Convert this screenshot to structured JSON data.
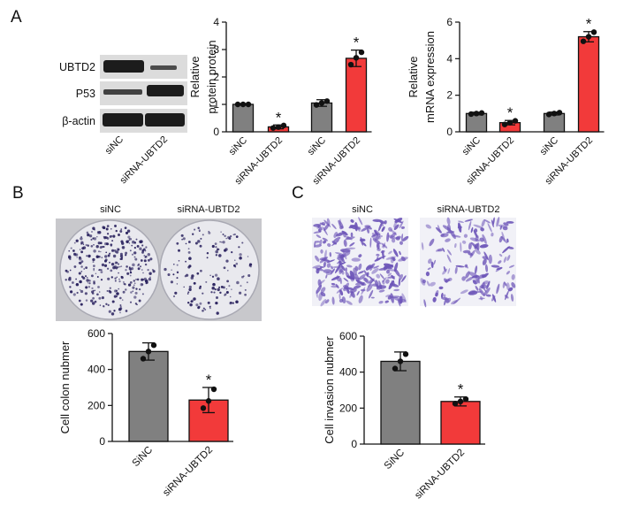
{
  "panels": {
    "a": "A",
    "b": "B",
    "c": "C"
  },
  "colors": {
    "control": "#808080",
    "treated": "#f23a3a",
    "outline": "#111111",
    "point": "#111111",
    "blot_bg": "#dcdcdc",
    "band": "#1c1c1c",
    "plate_bg": "#c8c8cc",
    "dish": "#e9e9ee",
    "colony": "#2c2460",
    "membrane": "#f1f1f7",
    "cell_stain": "#6d55b8"
  },
  "blot": {
    "labels": [
      "UBTD2",
      "P53",
      "β-actin"
    ],
    "lanes": [
      "siNC",
      "siRNA-UBTD2"
    ]
  },
  "colony_photos": {
    "labels": [
      "siNC",
      "siRNA-UBTD2"
    ]
  },
  "invasion_photos": {
    "labels": [
      "siNC",
      "siRNA-UBTD2"
    ]
  },
  "chart_data": [
    {
      "type": "bar",
      "categories": [
        "siNC",
        "siRNA-UBTD2",
        "siNC",
        "siRNA-UBTD2"
      ],
      "values": [
        1.0,
        0.18,
        1.05,
        2.68
      ],
      "errors": [
        0.03,
        0.07,
        0.12,
        0.3
      ],
      "points": [
        [
          1.0,
          1.0,
          1.0
        ],
        [
          0.14,
          0.17,
          0.23
        ],
        [
          0.98,
          1.05,
          1.12
        ],
        [
          2.45,
          2.7,
          2.9
        ]
      ],
      "significant": [
        false,
        true,
        false,
        true
      ],
      "significance_mark": "*",
      "ylabel": [
        "Relative",
        "protein protein"
      ],
      "ylim": [
        0,
        4
      ],
      "yticks": [
        0,
        1,
        2,
        3,
        4
      ]
    },
    {
      "type": "bar",
      "categories": [
        "siNC",
        "siRNA-UBTD2",
        "siNC",
        "siRNA-UBTD2"
      ],
      "values": [
        1.0,
        0.5,
        1.0,
        5.2
      ],
      "errors": [
        0.07,
        0.12,
        0.08,
        0.28
      ],
      "points": [
        [
          0.97,
          1.0,
          1.03
        ],
        [
          0.4,
          0.5,
          0.6
        ],
        [
          0.95,
          1.0,
          1.05
        ],
        [
          4.95,
          5.2,
          5.45
        ]
      ],
      "significant": [
        false,
        true,
        false,
        true
      ],
      "significance_mark": "*",
      "ylabel": [
        "Relative",
        "mRNA expression"
      ],
      "ylim": [
        0,
        6
      ],
      "yticks": [
        0,
        2,
        4,
        6
      ]
    },
    {
      "type": "bar",
      "categories": [
        "SiNC",
        "siRNA-UBTD2"
      ],
      "values": [
        500,
        230
      ],
      "errors": [
        48,
        70
      ],
      "points": [
        [
          460,
          500,
          535
        ],
        [
          185,
          225,
          290
        ]
      ],
      "significant": [
        false,
        true
      ],
      "significance_mark": "*",
      "ylabel": [
        "Cell colon nubmer"
      ],
      "ylim": [
        0,
        600
      ],
      "yticks": [
        0,
        200,
        400,
        600
      ]
    },
    {
      "type": "bar",
      "categories": [
        "SiNC",
        "siRNA-UBTD2"
      ],
      "values": [
        460,
        237
      ],
      "errors": [
        52,
        25
      ],
      "points": [
        [
          420,
          460,
          500
        ],
        [
          225,
          237,
          250
        ]
      ],
      "significant": [
        false,
        true
      ],
      "significance_mark": "*",
      "ylabel": [
        "Cell invasion nubmer"
      ],
      "ylim": [
        0,
        600
      ],
      "yticks": [
        0,
        200,
        400,
        600
      ]
    }
  ]
}
